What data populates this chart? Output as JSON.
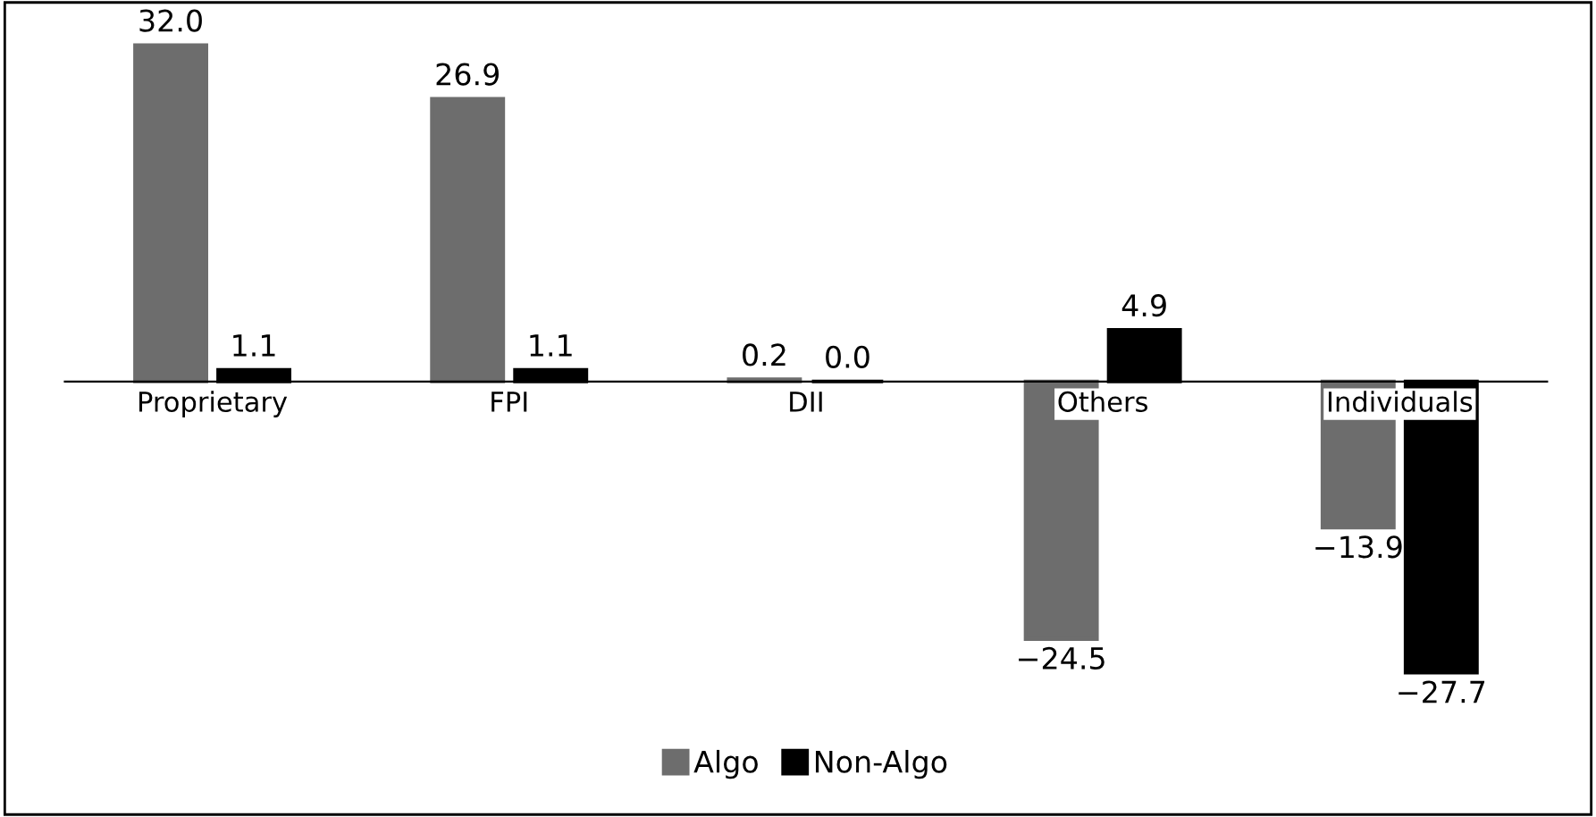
{
  "chart_data": {
    "type": "bar",
    "categories": [
      "Proprietary",
      "FPI",
      "DII",
      "Others",
      "Individuals"
    ],
    "series": [
      {
        "name": "Algo",
        "color": "#6d6d6d",
        "values": [
          32.0,
          26.9,
          0.2,
          -24.5,
          -13.9
        ],
        "value_labels": [
          "32.0",
          "26.9",
          "0.2",
          "−24.5",
          "−13.9"
        ]
      },
      {
        "name": "Non-Algo",
        "color": "#000000",
        "values": [
          1.1,
          1.1,
          0.0,
          4.9,
          -27.7
        ],
        "value_labels": [
          "1.1",
          "1.1",
          "0.0",
          "4.9",
          "−27.7"
        ]
      }
    ],
    "legend": "bottom"
  }
}
